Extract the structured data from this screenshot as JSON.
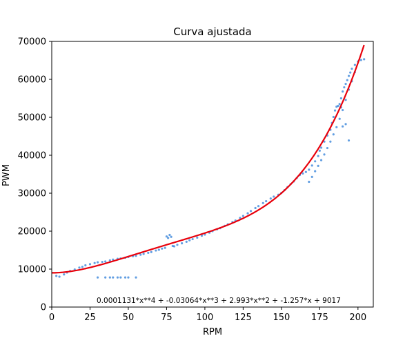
{
  "chart_data": {
    "type": "scatter",
    "title": "Curva ajustada",
    "xlabel": "RPM",
    "ylabel": "PWM",
    "xlim": [
      0,
      210
    ],
    "ylim": [
      0,
      70000
    ],
    "xticks": [
      "0",
      "25",
      "50",
      "75",
      "100",
      "125",
      "150",
      "175",
      "200"
    ],
    "yticks": [
      "0",
      "10000",
      "20000",
      "30000",
      "40000",
      "50000",
      "60000",
      "70000"
    ],
    "grid": false,
    "series": [
      {
        "kind": "scatter",
        "color": "#2f7fd8",
        "points": [
          [
            3,
            8200
          ],
          [
            5,
            8000
          ],
          [
            8,
            8600
          ],
          [
            10,
            9100
          ],
          [
            12,
            9500
          ],
          [
            15,
            9900
          ],
          [
            18,
            10400
          ],
          [
            20,
            10600
          ],
          [
            22,
            11000
          ],
          [
            25,
            11300
          ],
          [
            28,
            11600
          ],
          [
            30,
            11800
          ],
          [
            33,
            11900
          ],
          [
            35,
            12000
          ],
          [
            38,
            12300
          ],
          [
            40,
            12500
          ],
          [
            43,
            12700
          ],
          [
            45,
            12800
          ],
          [
            48,
            13000
          ],
          [
            50,
            13200
          ],
          [
            53,
            13400
          ],
          [
            55,
            13500
          ],
          [
            58,
            13800
          ],
          [
            60,
            14000
          ],
          [
            63,
            14300
          ],
          [
            65,
            14500
          ],
          [
            68,
            14900
          ],
          [
            70,
            15100
          ],
          [
            72,
            15400
          ],
          [
            74,
            15600
          ],
          [
            75,
            18600
          ],
          [
            76,
            18200
          ],
          [
            77,
            19000
          ],
          [
            78,
            18500
          ],
          [
            79,
            16100
          ],
          [
            80,
            16000
          ],
          [
            82,
            16400
          ],
          [
            85,
            16800
          ],
          [
            88,
            17200
          ],
          [
            90,
            17600
          ],
          [
            92,
            17900
          ],
          [
            95,
            18300
          ],
          [
            98,
            18800
          ],
          [
            100,
            19100
          ],
          [
            103,
            19600
          ],
          [
            105,
            20000
          ],
          [
            108,
            20500
          ],
          [
            110,
            20800
          ],
          [
            113,
            21400
          ],
          [
            115,
            21800
          ],
          [
            118,
            22400
          ],
          [
            120,
            22800
          ],
          [
            123,
            23500
          ],
          [
            125,
            24000
          ],
          [
            128,
            24700
          ],
          [
            130,
            25300
          ],
          [
            133,
            26100
          ],
          [
            135,
            26600
          ],
          [
            138,
            27400
          ],
          [
            140,
            27900
          ],
          [
            143,
            28600
          ],
          [
            145,
            29100
          ],
          [
            148,
            29600
          ],
          [
            150,
            30100
          ],
          [
            152,
            30800
          ],
          [
            154,
            31600
          ],
          [
            156,
            32400
          ],
          [
            158,
            33100
          ],
          [
            160,
            34000
          ],
          [
            162,
            34800
          ],
          [
            164,
            35200
          ],
          [
            166,
            35600
          ],
          [
            168,
            36200
          ],
          [
            170,
            37300
          ],
          [
            172,
            38400
          ],
          [
            174,
            39800
          ],
          [
            175,
            41200
          ],
          [
            176,
            42000
          ],
          [
            178,
            43600
          ],
          [
            180,
            45200
          ],
          [
            182,
            46700
          ],
          [
            183,
            48500
          ],
          [
            184,
            50100
          ],
          [
            185,
            51800
          ],
          [
            186,
            52800
          ],
          [
            188,
            53500
          ],
          [
            189,
            55000
          ],
          [
            190,
            56800
          ],
          [
            191,
            57900
          ],
          [
            192,
            58800
          ],
          [
            193,
            59800
          ],
          [
            194,
            60900
          ],
          [
            195,
            61800
          ],
          [
            196,
            62800
          ],
          [
            198,
            63800
          ],
          [
            200,
            64700
          ],
          [
            202,
            65100
          ],
          [
            204,
            65300
          ],
          [
            168,
            33000
          ],
          [
            170,
            34300
          ],
          [
            172,
            35800
          ],
          [
            174,
            37200
          ],
          [
            176,
            38700
          ],
          [
            178,
            40200
          ],
          [
            180,
            41900
          ],
          [
            182,
            43600
          ],
          [
            184,
            45500
          ],
          [
            186,
            47400
          ],
          [
            188,
            49600
          ],
          [
            190,
            51900
          ],
          [
            192,
            54600
          ],
          [
            194,
            57300
          ],
          [
            196,
            59500
          ],
          [
            198,
            61900
          ],
          [
            187,
            53000
          ],
          [
            189,
            52600
          ],
          [
            190,
            47600
          ],
          [
            192,
            48200
          ],
          [
            194,
            43900
          ],
          [
            30,
            7800
          ],
          [
            35,
            7800
          ],
          [
            38,
            7800
          ],
          [
            40,
            7800
          ],
          [
            43,
            7800
          ],
          [
            45,
            7800
          ],
          [
            48,
            7800
          ],
          [
            50,
            7800
          ],
          [
            55,
            7800
          ]
        ]
      },
      {
        "kind": "line",
        "color": "#e8000b",
        "coefficients": [
          0.0001131,
          -0.03064,
          2.993,
          -1.257,
          9017
        ],
        "x_range": [
          0,
          204
        ]
      }
    ],
    "annotation": "0.0001131*x**4 + -0.03064*x**3 + 2.993*x**2 + -1.257*x + 9017"
  }
}
